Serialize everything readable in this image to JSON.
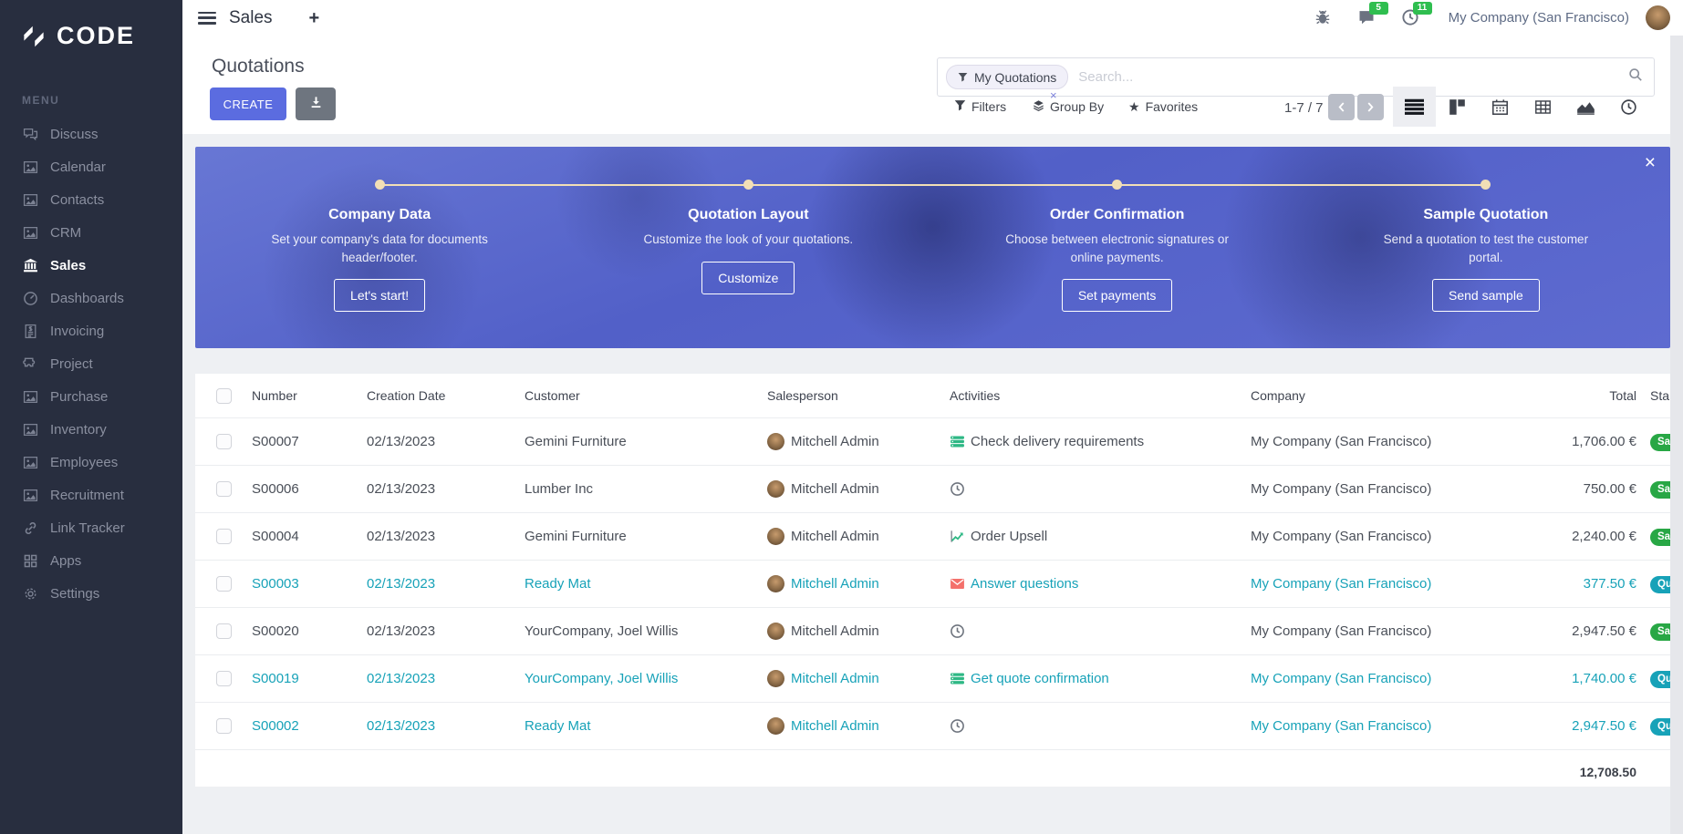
{
  "app": {
    "logo_text": "CODE",
    "menu_label": "MENU"
  },
  "sidebar": {
    "items": [
      {
        "label": "Discuss",
        "icon": "chat-icon"
      },
      {
        "label": "Calendar",
        "icon": "image-icon"
      },
      {
        "label": "Contacts",
        "icon": "image-icon"
      },
      {
        "label": "CRM",
        "icon": "image-icon"
      },
      {
        "label": "Sales",
        "icon": "bank-icon",
        "active": true
      },
      {
        "label": "Dashboards",
        "icon": "gauge-icon"
      },
      {
        "label": "Invoicing",
        "icon": "invoice-icon"
      },
      {
        "label": "Project",
        "icon": "puzzle-icon"
      },
      {
        "label": "Purchase",
        "icon": "image-icon"
      },
      {
        "label": "Inventory",
        "icon": "image-icon"
      },
      {
        "label": "Employees",
        "icon": "image-icon"
      },
      {
        "label": "Recruitment",
        "icon": "image-icon"
      },
      {
        "label": "Link Tracker",
        "icon": "link-icon"
      },
      {
        "label": "Apps",
        "icon": "apps-icon"
      },
      {
        "label": "Settings",
        "icon": "gear-icon"
      }
    ]
  },
  "topbar": {
    "app_title": "Sales",
    "plus_label": "+",
    "messages_badge": "5",
    "activities_badge": "11",
    "company": "My Company (San Francisco)"
  },
  "control": {
    "page_title": "Quotations",
    "create_label": "CREATE",
    "facet_label": "My Quotations",
    "facet_remove": "×",
    "search_placeholder": "Search...",
    "filters_label": "Filters",
    "group_by_label": "Group By",
    "favorites_label": "Favorites",
    "favorites_star": "★",
    "pager": "1-7 / 7"
  },
  "banner": {
    "close_label": "×",
    "steps": [
      {
        "title": "Company Data",
        "desc": "Set your company's data for documents header/footer.",
        "button": "Let's start!"
      },
      {
        "title": "Quotation Layout",
        "desc": "Customize the look of your quotations.",
        "button": "Customize"
      },
      {
        "title": "Order Confirmation",
        "desc": "Choose between electronic signatures or online payments.",
        "button": "Set payments"
      },
      {
        "title": "Sample Quotation",
        "desc": "Send a quotation to test the customer portal.",
        "button": "Send sample"
      }
    ]
  },
  "table": {
    "columns": [
      "Number",
      "Creation Date",
      "Customer",
      "Salesperson",
      "Activities",
      "Company",
      "Total",
      "Sta"
    ],
    "rows": [
      {
        "number": "S00007",
        "date": "02/13/2023",
        "customer": "Gemini Furniture",
        "salesperson": "Mitchell Admin",
        "activity_icon": "tasks-icon",
        "activity": "Check delivery requirements",
        "company": "My Company (San Francisco)",
        "total": "1,706.00 €",
        "status": "Sal",
        "status_color": "green",
        "highlight": false
      },
      {
        "number": "S00006",
        "date": "02/13/2023",
        "customer": "Lumber Inc",
        "salesperson": "Mitchell Admin",
        "activity_icon": "clock-icon",
        "activity": "",
        "company": "My Company (San Francisco)",
        "total": "750.00 €",
        "status": "Sal",
        "status_color": "green",
        "highlight": false
      },
      {
        "number": "S00004",
        "date": "02/13/2023",
        "customer": "Gemini Furniture",
        "salesperson": "Mitchell Admin",
        "activity_icon": "chart-icon",
        "activity": "Order Upsell",
        "company": "My Company (San Francisco)",
        "total": "2,240.00 €",
        "status": "Sal",
        "status_color": "green",
        "highlight": false
      },
      {
        "number": "S00003",
        "date": "02/13/2023",
        "customer": "Ready Mat",
        "salesperson": "Mitchell Admin",
        "activity_icon": "mail-icon",
        "activity": "Answer questions",
        "company": "My Company (San Francisco)",
        "total": "377.50 €",
        "status": "Qu",
        "status_color": "teal",
        "highlight": true
      },
      {
        "number": "S00020",
        "date": "02/13/2023",
        "customer": "YourCompany, Joel Willis",
        "salesperson": "Mitchell Admin",
        "activity_icon": "clock-icon",
        "activity": "",
        "company": "My Company (San Francisco)",
        "total": "2,947.50 €",
        "status": "Sal",
        "status_color": "green",
        "highlight": false
      },
      {
        "number": "S00019",
        "date": "02/13/2023",
        "customer": "YourCompany, Joel Willis",
        "salesperson": "Mitchell Admin",
        "activity_icon": "tasks-icon",
        "activity": "Get quote confirmation",
        "company": "My Company (San Francisco)",
        "total": "1,740.00 €",
        "status": "Qu",
        "status_color": "teal",
        "highlight": true
      },
      {
        "number": "S00002",
        "date": "02/13/2023",
        "customer": "Ready Mat",
        "salesperson": "Mitchell Admin",
        "activity_icon": "clock-icon",
        "activity": "",
        "company": "My Company (San Francisco)",
        "total": "2,947.50 €",
        "status": "Qu",
        "status_color": "teal",
        "highlight": true
      }
    ],
    "footer_total": "12,708.50"
  },
  "colors": {
    "accent": "#5b6ce0",
    "teal": "#17a2b8",
    "green_badge": "#28a745",
    "topbar_badge": "#2fbe4f",
    "sidebar_bg": "#282e3f",
    "banner_line": "#f2dfb6"
  }
}
